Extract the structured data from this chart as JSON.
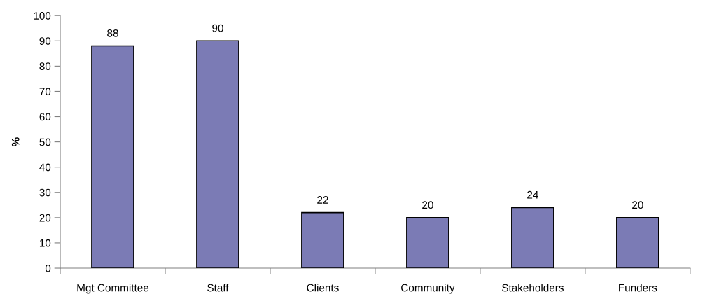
{
  "chart_data": {
    "type": "bar",
    "ylabel": "%",
    "categories": [
      "Mgt Committee",
      "Staff",
      "Clients",
      "Community",
      "Stakeholders",
      "Funders"
    ],
    "values": [
      88,
      90,
      22,
      20,
      24,
      20
    ],
    "color": "#7b7bb5",
    "ylim": [
      0,
      100
    ],
    "yticks": [
      0,
      10,
      20,
      30,
      40,
      50,
      60,
      70,
      80,
      90,
      100
    ],
    "data_labels": true,
    "grid": false
  }
}
